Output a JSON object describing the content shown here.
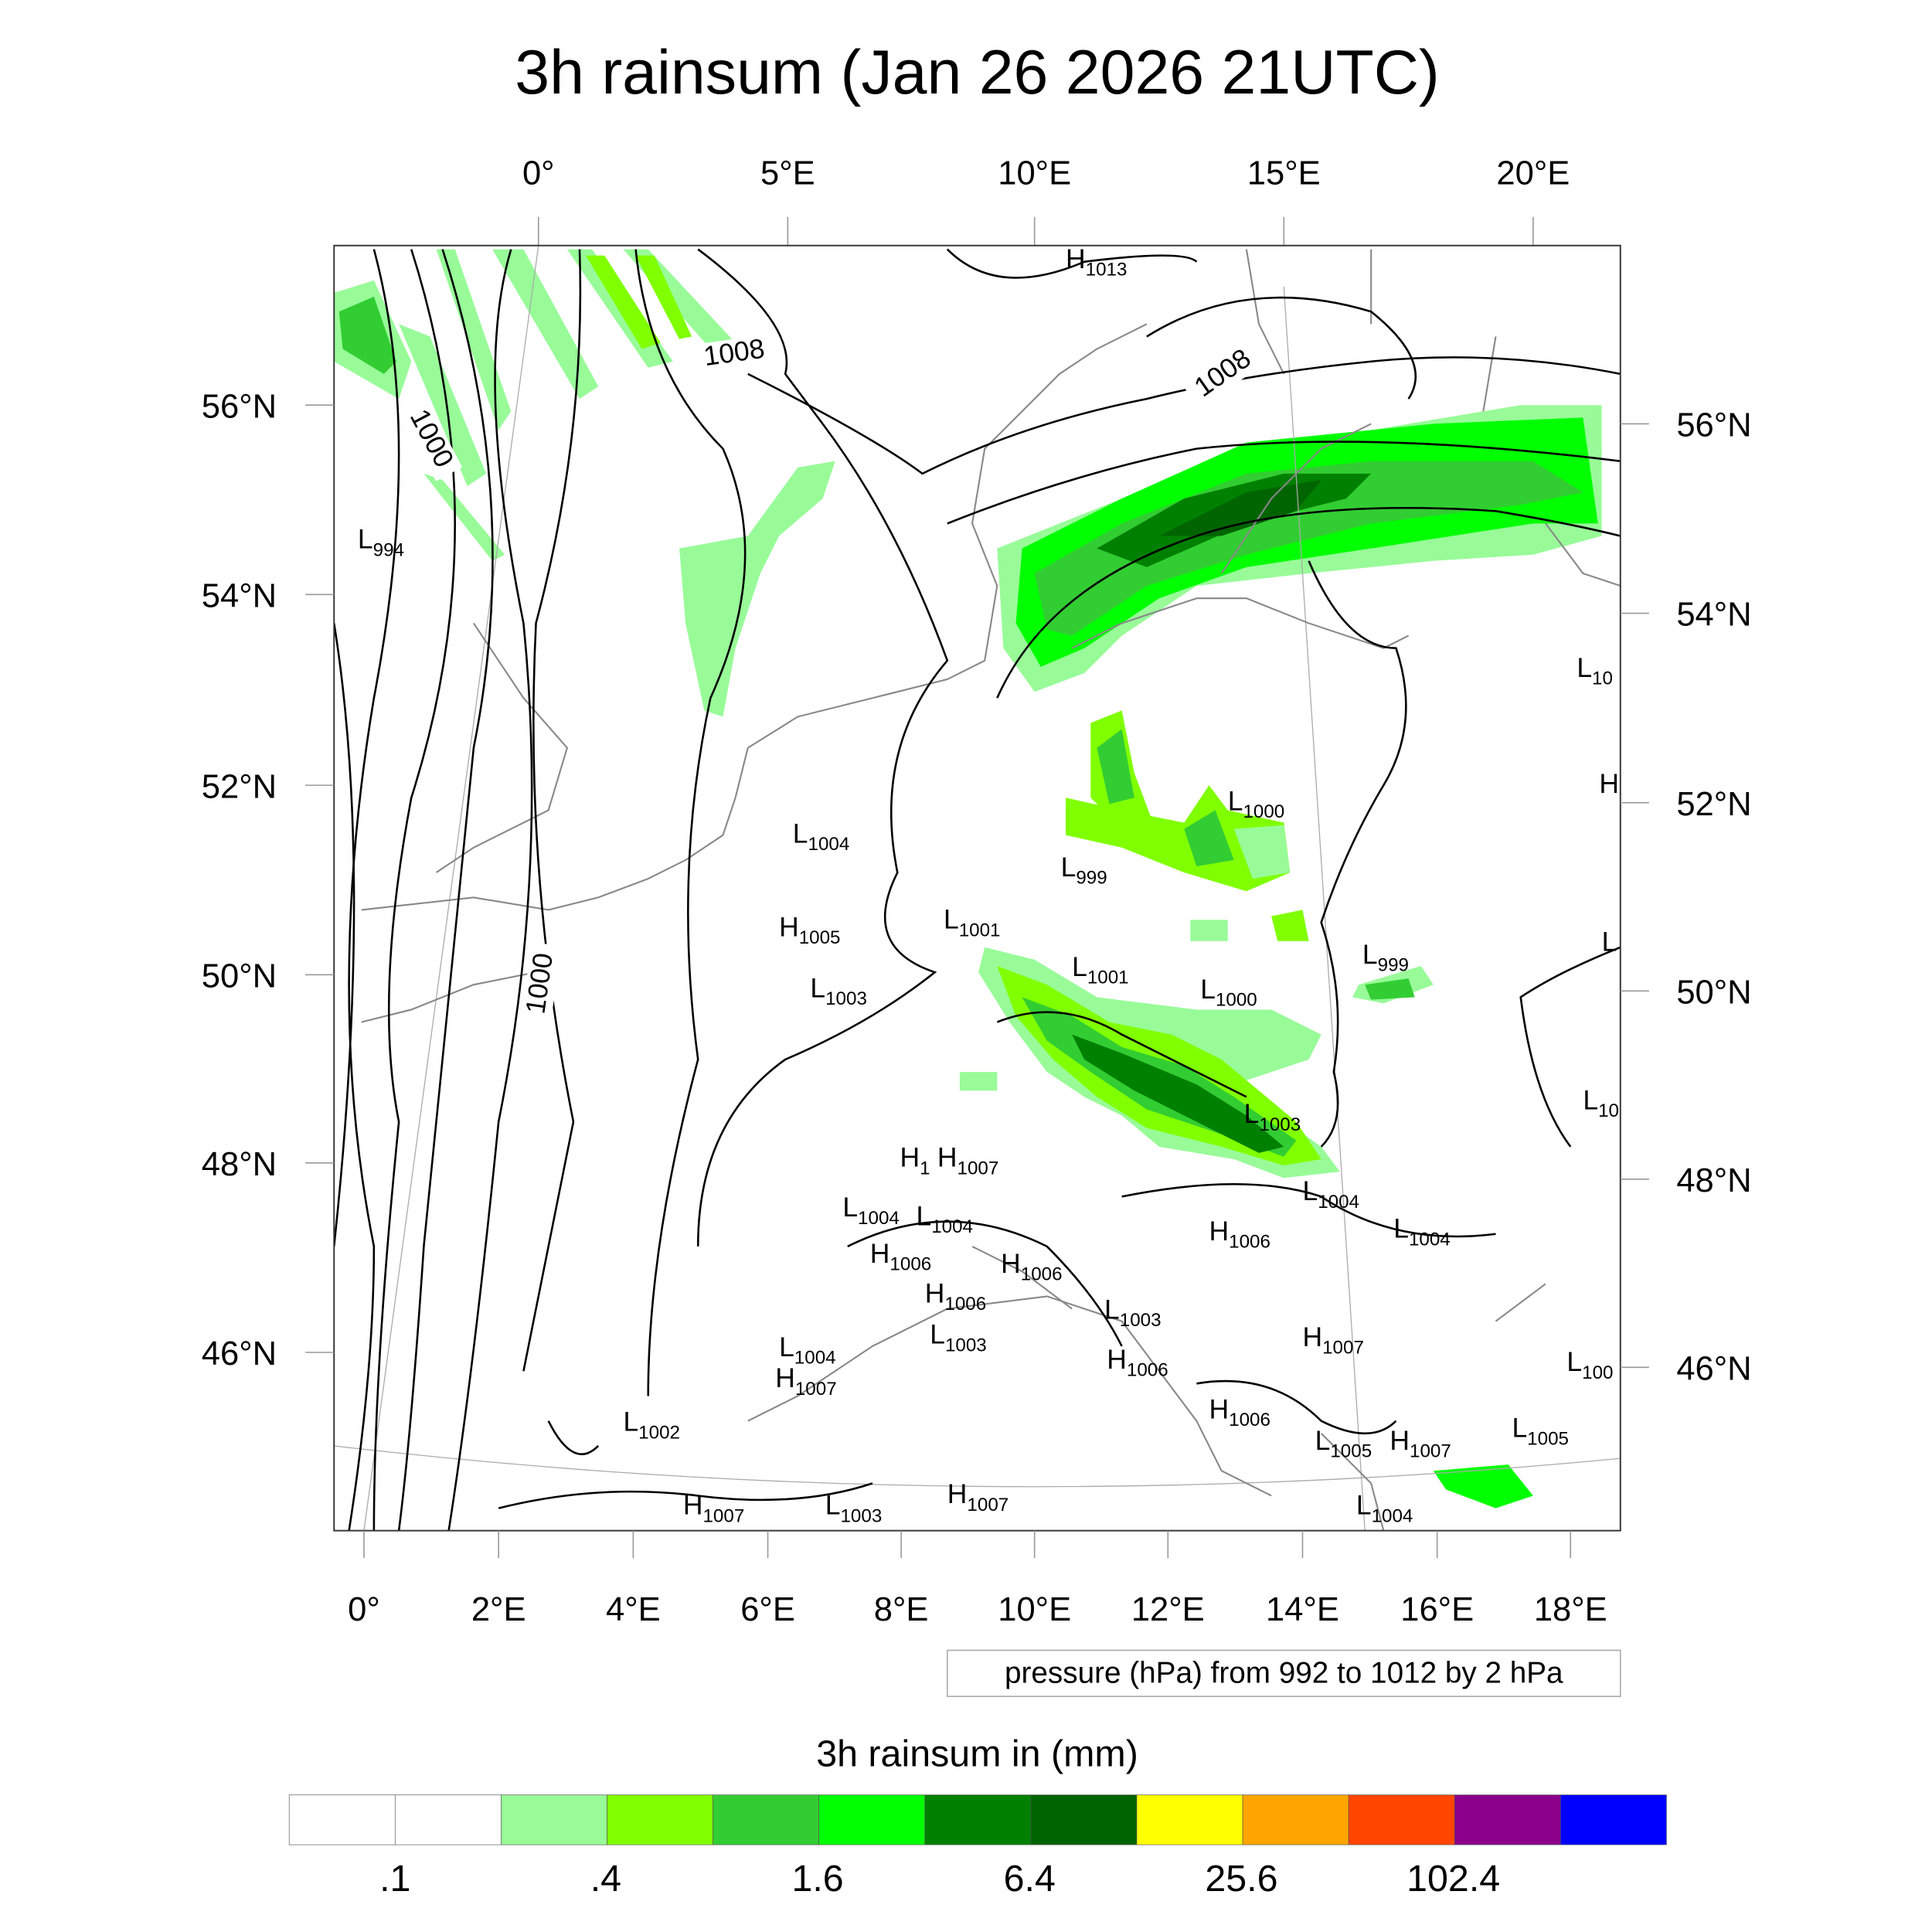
{
  "title": "3h rainsum (Jan 26 2026 21UTC)",
  "axes": {
    "top_lon": [
      "0°",
      "5°E",
      "10°E",
      "15°E",
      "20°E"
    ],
    "bottom_lon": [
      "0°",
      "2°E",
      "4°E",
      "6°E",
      "8°E",
      "10°E",
      "12°E",
      "14°E",
      "16°E",
      "18°E"
    ],
    "left_lat": [
      "56°N",
      "54°N",
      "52°N",
      "50°N",
      "48°N",
      "46°N"
    ],
    "right_lat": [
      "56°N",
      "54°N",
      "52°N",
      "50°N",
      "48°N",
      "46°N"
    ]
  },
  "contour_info": "pressure (hPa) from 992 to 1012 by 2 hPa",
  "contour_line_labels": [
    "1008",
    "1008",
    "1000",
    "1000"
  ],
  "pressure_centers": [
    {
      "t": "H",
      "v": "1013"
    },
    {
      "t": "L",
      "v": "994"
    },
    {
      "t": "L",
      "v": "10"
    },
    {
      "t": "H",
      "v": ""
    },
    {
      "t": "L",
      "v": "1000"
    },
    {
      "t": "L",
      "v": "1004"
    },
    {
      "t": "L",
      "v": "999"
    },
    {
      "t": "L",
      "v": "1001"
    },
    {
      "t": "H",
      "v": "1005"
    },
    {
      "t": "L",
      "v": ""
    },
    {
      "t": "L",
      "v": "999"
    },
    {
      "t": "L",
      "v": "1001"
    },
    {
      "t": "L",
      "v": "1003"
    },
    {
      "t": "L",
      "v": "1000"
    },
    {
      "t": "L",
      "v": "1003"
    },
    {
      "t": "L",
      "v": "10"
    },
    {
      "t": "H",
      "v": "1"
    },
    {
      "t": "L",
      "v": "1004"
    },
    {
      "t": "H",
      "v": "1007"
    },
    {
      "t": "L",
      "v": "1004"
    },
    {
      "t": "L",
      "v": "1004"
    },
    {
      "t": "H",
      "v": "1006"
    },
    {
      "t": "L",
      "v": "1004"
    },
    {
      "t": "H",
      "v": "1006"
    },
    {
      "t": "H",
      "v": "1006"
    },
    {
      "t": "H",
      "v": "1006"
    },
    {
      "t": "L",
      "v": "1003"
    },
    {
      "t": "L",
      "v": "1003"
    },
    {
      "t": "H",
      "v": "1007"
    },
    {
      "t": "L",
      "v": "1004"
    },
    {
      "t": "H",
      "v": "1006"
    },
    {
      "t": "L",
      "v": "100"
    },
    {
      "t": "H",
      "v": "1007"
    },
    {
      "t": "L",
      "v": "1002"
    },
    {
      "t": "H",
      "v": "1006"
    },
    {
      "t": "L",
      "v": "1005"
    },
    {
      "t": "L",
      "v": "1005"
    },
    {
      "t": "H",
      "v": "1007"
    },
    {
      "t": "H",
      "v": "1007"
    },
    {
      "t": "L",
      "v": "1003"
    },
    {
      "t": "H",
      "v": "1007"
    },
    {
      "t": "L",
      "v": "1004"
    }
  ],
  "colorbar": {
    "title": "3h rainsum in (mm)",
    "colors": [
      "#ffffff",
      "#ffffff",
      "#98fb98",
      "#80ff00",
      "#32cd32",
      "#00ff00",
      "#008000",
      "#006400",
      "#ffff00",
      "#ffa500",
      "#ff4500",
      "#8b008b",
      "#0000ff"
    ],
    "labels": [
      ".1",
      ".4",
      "1.6",
      "6.4",
      "25.6",
      "102.4"
    ]
  },
  "colors": {
    "light": "#98fb98",
    "lime": "#80ff00",
    "mid": "#32cd32",
    "bright": "#00ff00",
    "green": "#008000",
    "dark": "#006400"
  }
}
